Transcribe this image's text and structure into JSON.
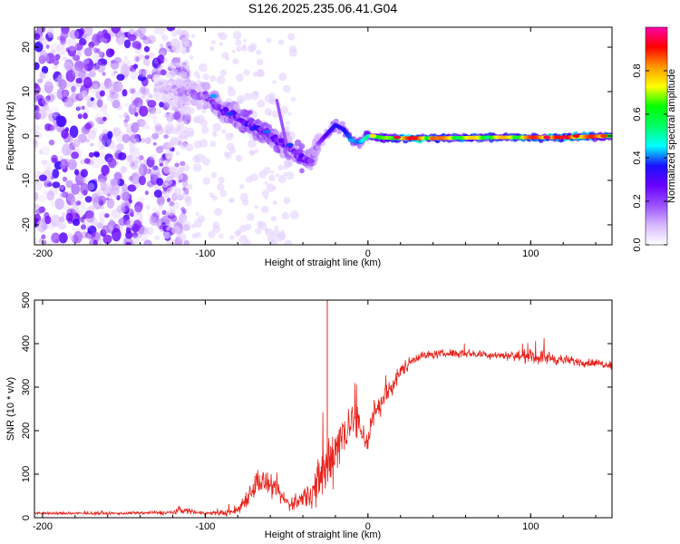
{
  "figure": {
    "title": "S126.2025.235.06.41.G04"
  },
  "chart_data": [
    {
      "type": "heatmap",
      "name": "spectrogram",
      "xlabel": "Height of straight line (km)",
      "ylabel": "Frequency (Hz)",
      "xlim": [
        -205,
        150
      ],
      "ylim": [
        -24.5,
        24.5
      ],
      "xticks": [
        -200,
        -100,
        0,
        100
      ],
      "yticks": [
        -20,
        -10,
        0,
        10,
        20
      ],
      "colorbar": {
        "label": "Normalized spectral amplitude",
        "range": [
          0,
          1
        ],
        "ticks": [
          "0.0",
          "0.2",
          "0.4",
          "0.6",
          "0.8"
        ],
        "colors": [
          "#ffffff",
          "#d8b8ff",
          "#9a50ff",
          "#6a00ff",
          "#1a10ff",
          "#00ffff",
          "#00ff66",
          "#00ff00",
          "#ffff00",
          "#ff9900",
          "#ff0000",
          "#ff00aa"
        ]
      },
      "ridge": {
        "x": [
          -130,
          -115,
          -100,
          -90,
          -80,
          -70,
          -60,
          -50,
          -45,
          -40,
          -35,
          -30,
          -25,
          -20,
          -15,
          -10,
          -5,
          0,
          10,
          20,
          30,
          40,
          60,
          80,
          100,
          120,
          150
        ],
        "y": [
          11,
          10,
          9,
          6,
          4,
          2,
          0,
          -2,
          -4,
          -5,
          -5.5,
          -1.5,
          0.5,
          2.5,
          1.5,
          -1,
          -1.5,
          0,
          -0.4,
          -0.5,
          -0.5,
          -0.5,
          -0.4,
          -0.3,
          -0.3,
          -0.3,
          0
        ],
        "amplitude": [
          0.08,
          0.15,
          0.22,
          0.3,
          0.35,
          0.4,
          0.35,
          0.32,
          0.3,
          0.35,
          0.25,
          0.2,
          0.3,
          0.35,
          0.35,
          0.4,
          0.4,
          0.55,
          0.6,
          0.8,
          0.85,
          0.8,
          0.7,
          0.7,
          0.8,
          0.9,
          0.75
        ]
      }
    },
    {
      "type": "line",
      "name": "snr",
      "xlabel": "Height of straight line (km)",
      "ylabel": "SNR (10 * v/v)",
      "xlim": [
        -205,
        150
      ],
      "ylim": [
        0,
        500
      ],
      "xticks": [
        -200,
        -100,
        0,
        100
      ],
      "yticks": [
        0,
        100,
        200,
        300,
        400,
        500
      ],
      "series": [
        {
          "name": "SNR",
          "color": "#e8231c",
          "x": [
            -205,
            -180,
            -150,
            -120,
            -115,
            -100,
            -85,
            -80,
            -72,
            -68,
            -62,
            -55,
            -48,
            -42,
            -36,
            -30,
            -26,
            -22,
            -18,
            -14,
            -10,
            -6,
            -2,
            0,
            3,
            6,
            10,
            15,
            20,
            25,
            30,
            40,
            50,
            60,
            70,
            80,
            90,
            100,
            110,
            120,
            130,
            140,
            150
          ],
          "y": [
            10,
            10,
            10,
            12,
            18,
            10,
            12,
            18,
            60,
            85,
            78,
            55,
            30,
            40,
            55,
            80,
            110,
            150,
            175,
            200,
            225,
            215,
            185,
            175,
            235,
            255,
            275,
            305,
            335,
            355,
            370,
            375,
            378,
            378,
            375,
            374,
            372,
            370,
            368,
            362,
            358,
            355,
            352
          ],
          "noise": [
            4,
            4,
            4,
            6,
            10,
            5,
            10,
            18,
            30,
            40,
            35,
            25,
            20,
            25,
            40,
            70,
            90,
            90,
            80,
            70,
            60,
            50,
            40,
            40,
            40,
            38,
            35,
            28,
            22,
            18,
            14,
            12,
            12,
            12,
            12,
            12,
            14,
            20,
            20,
            14,
            12,
            12,
            12
          ],
          "spike": {
            "x": -25,
            "y": 500
          }
        }
      ]
    }
  ]
}
